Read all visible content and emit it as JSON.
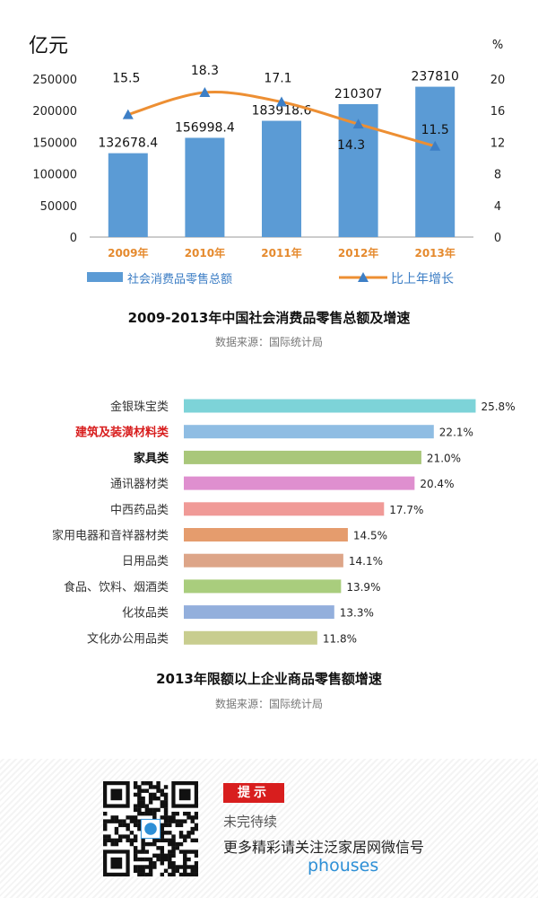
{
  "chart_data": [
    {
      "type": "bar+line",
      "title": "2009-2013年中国社会消费品零售总额及增速",
      "source": "数据来源：国际统计局",
      "left_axis_label": "亿元",
      "right_axis_label": "%",
      "categories": [
        "2009年",
        "2010年",
        "2011年",
        "2012年",
        "2013年"
      ],
      "left_ticks": [
        0,
        50000,
        100000,
        150000,
        200000,
        250000
      ],
      "right_ticks": [
        0,
        4,
        8,
        12,
        16,
        20
      ],
      "ylim_left": [
        0,
        250000
      ],
      "ylim_right": [
        0,
        20
      ],
      "series": [
        {
          "name": "社会消费品零售总额",
          "kind": "bar",
          "axis": "left",
          "values": [
            132678.4,
            156998.4,
            183918.6,
            210307,
            237810
          ],
          "labels": [
            "132678.4",
            "156998.4",
            "183918.6",
            "210307",
            "237810"
          ]
        },
        {
          "name": "比上年增长",
          "kind": "line",
          "axis": "right",
          "values": [
            15.5,
            18.3,
            17.1,
            14.3,
            11.5
          ],
          "labels": [
            "15.5",
            "18.3",
            "17.1",
            "14.3",
            "11.5"
          ]
        }
      ],
      "colors": {
        "bar": "#5b9bd5",
        "line": "#ed8f33",
        "marker": "#3d7fc6",
        "category_text": "#e58a2e"
      }
    },
    {
      "type": "bar",
      "orientation": "horizontal",
      "title": "2013年限额以上企业商品零售额增速",
      "source": "数据来源：国际统计局",
      "xlim": [
        0,
        26
      ],
      "items": [
        {
          "label": "金银珠宝类",
          "value": 25.8,
          "value_text": "25.8%",
          "color": "#7dd3d8",
          "label_color": "#333333",
          "bold": false
        },
        {
          "label": "建筑及装潢材料类",
          "value": 22.1,
          "value_text": "22.1%",
          "color": "#8fbde3",
          "label_color": "#d81e1e",
          "bold": true
        },
        {
          "label": "家具类",
          "value": 21.0,
          "value_text": "21.0%",
          "color": "#a9c77a",
          "label_color": "#111111",
          "bold": true
        },
        {
          "label": "通讯器材类",
          "value": 20.4,
          "value_text": "20.4%",
          "color": "#df8fcf",
          "label_color": "#333333",
          "bold": false
        },
        {
          "label": "中西药品类",
          "value": 17.7,
          "value_text": "17.7%",
          "color": "#f09a97",
          "label_color": "#333333",
          "bold": false
        },
        {
          "label": "家用电器和音祥器材类",
          "value": 14.5,
          "value_text": "14.5%",
          "color": "#e59c6d",
          "label_color": "#333333",
          "bold": false
        },
        {
          "label": "日用品类",
          "value": 14.1,
          "value_text": "14.1%",
          "color": "#dda588",
          "label_color": "#333333",
          "bold": false
        },
        {
          "label": "食品、饮料、烟酒类",
          "value": 13.9,
          "value_text": "13.9%",
          "color": "#a9cd7d",
          "label_color": "#333333",
          "bold": false
        },
        {
          "label": "化妆品类",
          "value": 13.3,
          "value_text": "13.3%",
          "color": "#93afdc",
          "label_color": "#333333",
          "bold": false
        },
        {
          "label": "文化办公用品类",
          "value": 11.8,
          "value_text": "11.8%",
          "color": "#c8cd8f",
          "label_color": "#333333",
          "bold": false
        }
      ]
    }
  ],
  "footer": {
    "tip_badge": "提示",
    "line1": "未完待续",
    "line2": "更多精彩请关注泛家居网微信号",
    "line3": "phouses"
  }
}
